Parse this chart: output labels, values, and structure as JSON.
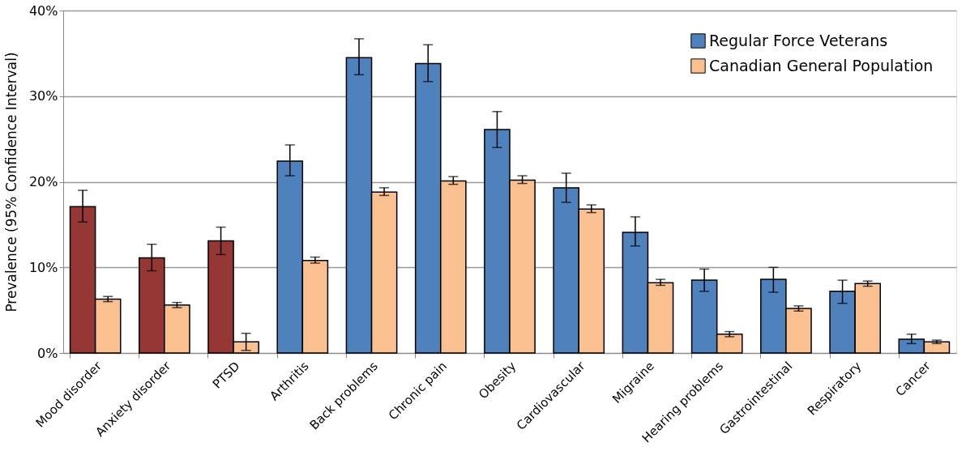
{
  "chart_data": {
    "type": "bar",
    "ylabel": "Prevalence (95% Confidence Interval)",
    "categories": [
      "Mood disorder",
      "Anxiety disorder",
      "PTSD",
      "Arthritis",
      "Back problems",
      "Chronic pain",
      "Obesity",
      "Cardiovascular",
      "Migraine",
      "Hearing problems",
      "Gastrointestinal",
      "Respiratory",
      "Cancer"
    ],
    "series": [
      {
        "name": "Regular Force Veterans",
        "color": "#4f81bd",
        "colors": [
          "#953735",
          "#953735",
          "#953735",
          "#4f81bd",
          "#4f81bd",
          "#4f81bd",
          "#4f81bd",
          "#4f81bd",
          "#4f81bd",
          "#4f81bd",
          "#4f81bd",
          "#4f81bd",
          "#4f81bd"
        ],
        "values": [
          17.1,
          11.1,
          13.1,
          22.4,
          34.5,
          33.8,
          26.1,
          19.3,
          14.1,
          8.5,
          8.6,
          7.2,
          1.6
        ],
        "errors": [
          [
            15.3,
            19.0
          ],
          [
            9.6,
            12.7
          ],
          [
            11.5,
            14.7
          ],
          [
            20.7,
            24.3
          ],
          [
            32.5,
            36.7
          ],
          [
            31.7,
            36.0
          ],
          [
            24.0,
            28.2
          ],
          [
            17.6,
            21.0
          ],
          [
            12.5,
            15.9
          ],
          [
            7.2,
            9.8
          ],
          [
            7.1,
            10.0
          ],
          [
            5.8,
            8.5
          ],
          [
            1.1,
            2.2
          ]
        ]
      },
      {
        "name": "Canadian General Population",
        "color": "#fac090",
        "values": [
          6.3,
          5.6,
          1.3,
          10.8,
          18.8,
          20.1,
          20.2,
          16.8,
          8.2,
          2.2,
          5.2,
          8.1,
          1.3
        ],
        "errors": [
          [
            6.0,
            6.6
          ],
          [
            5.3,
            5.9
          ],
          [
            0.3,
            2.3
          ],
          [
            10.5,
            11.2
          ],
          [
            18.4,
            19.3
          ],
          [
            19.7,
            20.6
          ],
          [
            19.8,
            20.7
          ],
          [
            16.4,
            17.3
          ],
          [
            7.9,
            8.6
          ],
          [
            1.9,
            2.5
          ],
          [
            4.9,
            5.5
          ],
          [
            7.8,
            8.4
          ],
          [
            1.1,
            1.5
          ]
        ]
      }
    ],
    "ylim": [
      0,
      40
    ],
    "yticks": [
      {
        "value": 0,
        "label": "0%"
      },
      {
        "value": 10,
        "label": "10%"
      },
      {
        "value": 20,
        "label": "20%"
      },
      {
        "value": 30,
        "label": "30%"
      },
      {
        "value": 40,
        "label": "40%"
      }
    ],
    "grid": "y",
    "legend": "top right"
  }
}
